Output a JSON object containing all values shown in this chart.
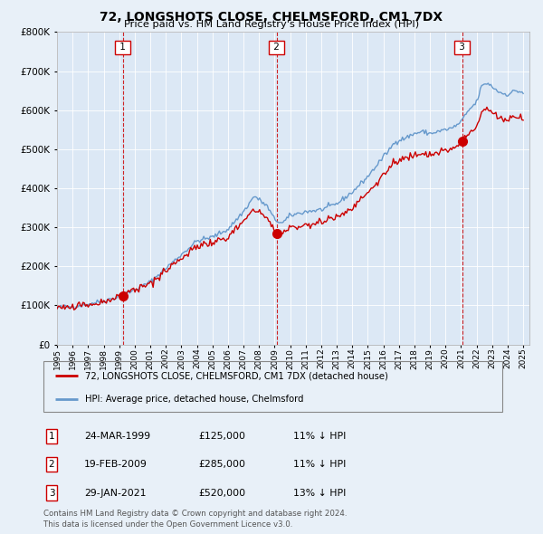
{
  "title": "72, LONGSHOTS CLOSE, CHELMSFORD, CM1 7DX",
  "subtitle": "Price paid vs. HM Land Registry's House Price Index (HPI)",
  "legend_line1": "72, LONGSHOTS CLOSE, CHELMSFORD, CM1 7DX (detached house)",
  "legend_line2": "HPI: Average price, detached house, Chelmsford",
  "footer1": "Contains HM Land Registry data © Crown copyright and database right 2024.",
  "footer2": "This data is licensed under the Open Government Licence v3.0.",
  "transactions": [
    {
      "num": 1,
      "date": "24-MAR-1999",
      "price": 125000,
      "pct": "11%",
      "dir": "↓"
    },
    {
      "num": 2,
      "date": "19-FEB-2009",
      "price": 285000,
      "pct": "11%",
      "dir": "↓"
    },
    {
      "num": 3,
      "date": "29-JAN-2021",
      "price": 520000,
      "pct": "13%",
      "dir": "↓"
    }
  ],
  "sale_dates_decimal": [
    1999.23,
    2009.13,
    2021.08
  ],
  "sale_prices": [
    125000,
    285000,
    520000
  ],
  "bg_color": "#e8f0f8",
  "plot_bg_color": "#dce8f5",
  "red_line_color": "#cc0000",
  "blue_line_color": "#6699cc",
  "vline_color": "#cc0000",
  "marker_color": "#cc0000",
  "box_color": "#cc0000",
  "ylim": [
    0,
    800000
  ],
  "xlim_start": 1995.4,
  "xlim_end": 2025.4,
  "hpi_anchors": [
    [
      1995.0,
      95000
    ],
    [
      1996.0,
      97000
    ],
    [
      1997.0,
      103000
    ],
    [
      1998.0,
      112000
    ],
    [
      1999.0,
      122000
    ],
    [
      2000.0,
      140000
    ],
    [
      2001.0,
      160000
    ],
    [
      2002.0,
      195000
    ],
    [
      2003.0,
      230000
    ],
    [
      2004.0,
      265000
    ],
    [
      2005.0,
      275000
    ],
    [
      2006.0,
      295000
    ],
    [
      2007.0,
      340000
    ],
    [
      2007.7,
      380000
    ],
    [
      2008.5,
      355000
    ],
    [
      2009.0,
      320000
    ],
    [
      2009.5,
      310000
    ],
    [
      2010.0,
      330000
    ],
    [
      2011.0,
      340000
    ],
    [
      2012.0,
      345000
    ],
    [
      2013.0,
      360000
    ],
    [
      2014.0,
      390000
    ],
    [
      2015.0,
      430000
    ],
    [
      2016.0,
      480000
    ],
    [
      2016.8,
      520000
    ],
    [
      2017.5,
      530000
    ],
    [
      2018.0,
      540000
    ],
    [
      2018.5,
      545000
    ],
    [
      2019.0,
      540000
    ],
    [
      2019.5,
      545000
    ],
    [
      2020.0,
      550000
    ],
    [
      2020.5,
      555000
    ],
    [
      2021.0,
      570000
    ],
    [
      2021.5,
      600000
    ],
    [
      2022.0,
      620000
    ],
    [
      2022.3,
      660000
    ],
    [
      2022.7,
      670000
    ],
    [
      2023.0,
      660000
    ],
    [
      2023.5,
      645000
    ],
    [
      2024.0,
      640000
    ],
    [
      2024.5,
      650000
    ],
    [
      2025.0,
      645000
    ]
  ]
}
